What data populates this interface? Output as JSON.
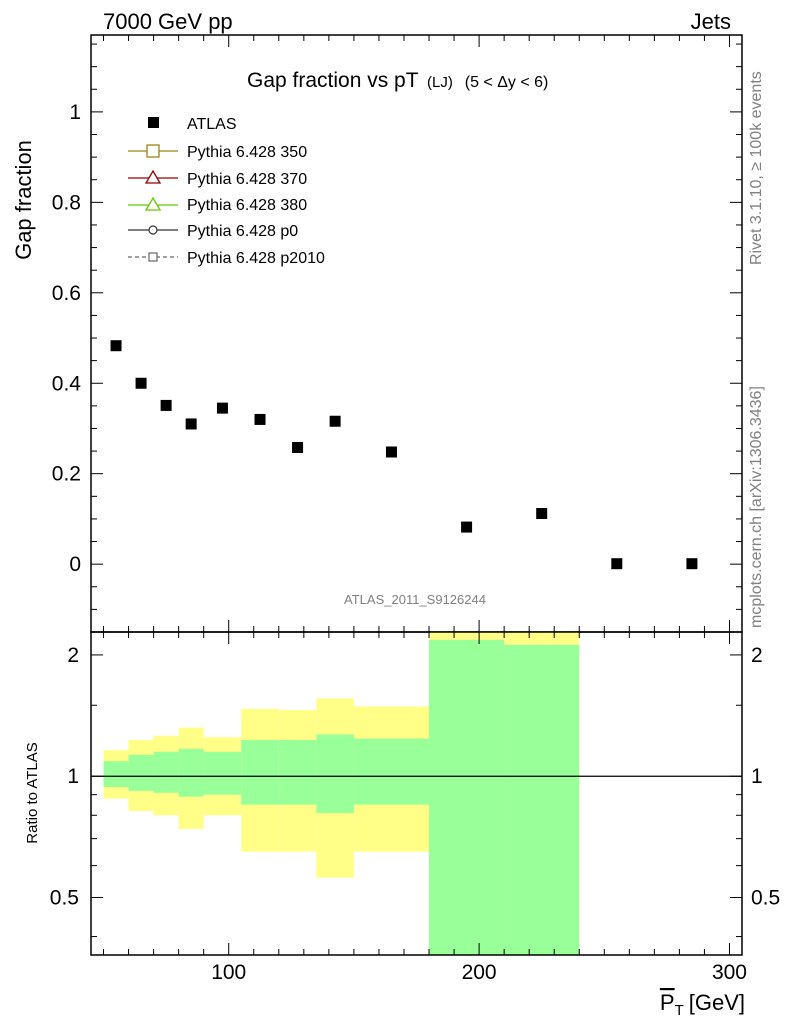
{
  "header": {
    "left": "7000 GeV pp",
    "right": "Jets"
  },
  "side_labels": {
    "rivet": "Rivet 3.1.10, ≥ 100k events",
    "mcplots": "mcplots.cern.ch [arXiv:1306.3436]"
  },
  "watermark": "ATLAS_2011_S9126244",
  "colors": {
    "green_band": "#99ff99",
    "yellow_band": "#ffff88",
    "p350": "#998811",
    "p370": "#990000",
    "p380": "#66cc00",
    "p0": "#333333",
    "p2010": "#666666"
  },
  "chart_data": [
    {
      "type": "scatter",
      "title_main": "Gap fraction vs pT",
      "title_sub": "(LJ)",
      "title_cond": "(5 < Δy < 6)",
      "ylabel": "Gap fraction",
      "xlim": [
        45,
        305
      ],
      "ylim": [
        -0.15,
        1.17
      ],
      "grid": false,
      "legend_placement": "top-left",
      "yticks": [
        0,
        0.2,
        0.4,
        0.6,
        0.8,
        1
      ],
      "ytick_labels": [
        "0",
        "0.2",
        "0.4",
        "0.6",
        "0.8",
        "1"
      ],
      "legend": [
        {
          "name": "ATLAS",
          "marker": "filled-square"
        },
        {
          "name": "Pythia 6.428 350",
          "marker": "open-square-line"
        },
        {
          "name": "Pythia 6.428 370",
          "marker": "open-triangle-line"
        },
        {
          "name": "Pythia 6.428 380",
          "marker": "open-triangle-line"
        },
        {
          "name": "Pythia 6.428 p0",
          "marker": "open-circle-line"
        },
        {
          "name": "Pythia 6.428 p2010",
          "marker": "open-square-dashed"
        }
      ],
      "series": [
        {
          "name": "ATLAS",
          "x": [
            55,
            65,
            75,
            85,
            97.5,
            112.5,
            127.5,
            142.5,
            165,
            195,
            225,
            255,
            285
          ],
          "y": [
            0.483,
            0.4,
            0.351,
            0.31,
            0.345,
            0.32,
            0.258,
            0.316,
            0.248,
            0.082,
            0.112,
            0.001,
            0.001
          ]
        }
      ]
    },
    {
      "type": "area",
      "ylabel": "Ratio to ATLAS",
      "xlabel": "P_T [GeV]",
      "xlabel_main": "P",
      "xlabel_sub": "T",
      "xlabel_unit": "[GeV]",
      "xlim": [
        45,
        305
      ],
      "ylim": [
        0.36,
        2.28
      ],
      "xticks": [
        100,
        200,
        300
      ],
      "xtick_labels": [
        "100",
        "200",
        "300"
      ],
      "yticks": [
        0.5,
        1,
        2
      ],
      "ytick_labels": [
        "0.5",
        "1",
        "2"
      ],
      "reference_line": 1,
      "bands": [
        {
          "x0": 50,
          "x1": 60,
          "stat_lo": 0.94,
          "stat_hi": 1.09,
          "tot_lo": 0.88,
          "tot_hi": 1.16
        },
        {
          "x0": 60,
          "x1": 70,
          "stat_lo": 0.92,
          "stat_hi": 1.13,
          "tot_lo": 0.82,
          "tot_hi": 1.23
        },
        {
          "x0": 70,
          "x1": 80,
          "stat_lo": 0.91,
          "stat_hi": 1.15,
          "tot_lo": 0.8,
          "tot_hi": 1.26
        },
        {
          "x0": 80,
          "x1": 90,
          "stat_lo": 0.89,
          "stat_hi": 1.17,
          "tot_lo": 0.74,
          "tot_hi": 1.32
        },
        {
          "x0": 90,
          "x1": 105,
          "stat_lo": 0.9,
          "stat_hi": 1.15,
          "tot_lo": 0.8,
          "tot_hi": 1.25
        },
        {
          "x0": 105,
          "x1": 120,
          "stat_lo": 0.85,
          "stat_hi": 1.23,
          "tot_lo": 0.65,
          "tot_hi": 1.47
        },
        {
          "x0": 120,
          "x1": 135,
          "stat_lo": 0.85,
          "stat_hi": 1.23,
          "tot_lo": 0.65,
          "tot_hi": 1.46
        },
        {
          "x0": 135,
          "x1": 150,
          "stat_lo": 0.81,
          "stat_hi": 1.27,
          "tot_lo": 0.56,
          "tot_hi": 1.56
        },
        {
          "x0": 150,
          "x1": 180,
          "stat_lo": 0.85,
          "stat_hi": 1.24,
          "tot_lo": 0.65,
          "tot_hi": 1.49
        },
        {
          "x0": 180,
          "x1": 210,
          "stat_lo": 0.3,
          "stat_hi": 2.18,
          "tot_lo": 0.3,
          "tot_hi": 2.4
        },
        {
          "x0": 210,
          "x1": 240,
          "stat_lo": 0.3,
          "stat_hi": 2.12,
          "tot_lo": 0.3,
          "tot_hi": 2.4
        }
      ]
    }
  ]
}
